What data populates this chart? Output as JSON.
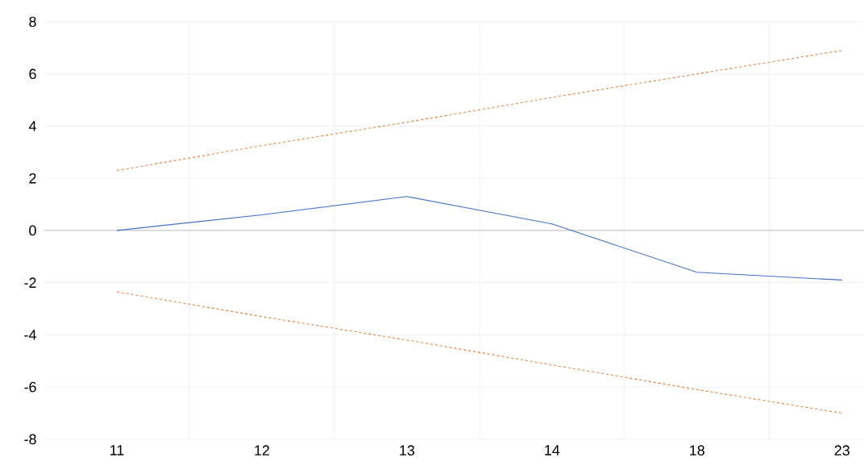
{
  "chart_data": {
    "type": "line",
    "categories": [
      "11",
      "12",
      "13",
      "14",
      "18",
      "23"
    ],
    "series": [
      {
        "color": "#4472c4",
        "line_style": "solid",
        "values": [
          0.0,
          0.6,
          1.3,
          0.25,
          -1.6,
          -1.9
        ]
      },
      {
        "color": "#ed7d31",
        "line_style": "dashed",
        "values": [
          2.3,
          3.25,
          4.15,
          5.1,
          6.0,
          6.9
        ]
      },
      {
        "color": "#ed7d31",
        "line_style": "dashed",
        "values": [
          -2.35,
          -3.3,
          -4.2,
          -5.15,
          -6.1,
          -7.0
        ]
      }
    ],
    "ylim": [
      -8,
      8
    ],
    "yticks": [
      -8,
      -6,
      -4,
      -2,
      0,
      2,
      4,
      6,
      8
    ],
    "grid": true
  }
}
